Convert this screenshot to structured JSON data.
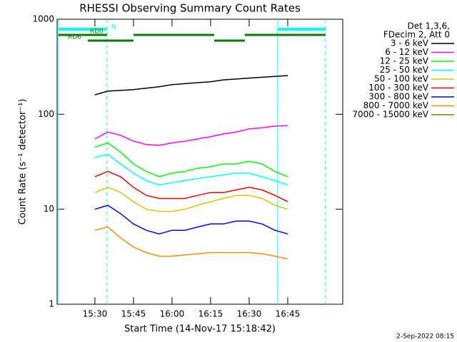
{
  "chart_data": {
    "type": "line",
    "title": "RHESSI Observing Summary Count Rates",
    "xlabel": "Start Time (14-Nov-17 15:18:42)",
    "ylabel": "Count Rate (s⁻¹ detector⁻¹)",
    "legend_header": [
      "Det 1,3,6,",
      "FDecim 2, Att 0"
    ],
    "footer": "2-Sep-2022 08:15",
    "log_y": true,
    "xlim": [
      915.3,
      1026.4
    ],
    "xticks": [
      {
        "value": 930,
        "label": "15:30"
      },
      {
        "value": 945,
        "label": "15:45"
      },
      {
        "value": 960,
        "label": "16:00"
      },
      {
        "value": 975,
        "label": "16:15"
      },
      {
        "value": 990,
        "label": "16:30"
      },
      {
        "value": 1005,
        "label": "16:45"
      }
    ],
    "ylim": [
      1,
      1000
    ],
    "yticks": [
      1,
      10,
      100,
      1000
    ],
    "x": [
      930,
      935,
      940,
      945,
      950,
      955,
      960,
      965,
      970,
      975,
      980,
      985,
      990,
      995,
      1000,
      1005
    ],
    "series": [
      {
        "name": "3 - 6 keV",
        "color": "#000000",
        "values": [
          160,
          175,
          178,
          182,
          188,
          195,
          205,
          210,
          215,
          220,
          230,
          235,
          240,
          245,
          250,
          255
        ]
      },
      {
        "name": "6 - 12 keV",
        "color": "#ff00ff",
        "values": [
          55,
          65,
          60,
          52,
          48,
          47,
          50,
          52,
          55,
          58,
          62,
          65,
          70,
          72,
          75,
          76
        ]
      },
      {
        "name": "12 - 25 keV",
        "color": "#00ff00",
        "values": [
          45,
          50,
          40,
          30,
          25,
          22,
          24,
          25,
          27,
          28,
          30,
          30,
          32,
          30,
          25,
          22
        ]
      },
      {
        "name": "25 - 50 keV",
        "color": "#00ffff",
        "values": [
          35,
          38,
          30,
          24,
          20,
          18,
          19,
          20,
          21,
          22,
          23,
          24,
          24,
          22,
          20,
          18
        ]
      },
      {
        "name": "50 - 100 keV",
        "color": "#cccc00",
        "values": [
          15,
          17,
          15,
          12,
          10,
          9.5,
          9.5,
          10,
          11,
          12,
          13,
          14,
          14,
          13,
          11,
          10
        ]
      },
      {
        "name": "100 - 300 keV",
        "color": "#ff0000",
        "values": [
          22,
          25,
          22,
          17,
          14,
          13,
          13,
          13,
          14,
          15,
          15,
          16,
          17,
          16,
          14,
          12
        ]
      },
      {
        "name": "300 - 800 keV",
        "color": "#0000ff",
        "values": [
          10,
          11,
          9,
          7,
          6,
          5.5,
          6,
          6,
          6.5,
          7,
          7,
          7.5,
          7.5,
          7,
          6,
          5.5
        ]
      },
      {
        "name": "800 - 7000 keV",
        "color": "#ff8c00",
        "values": [
          6,
          6.5,
          5,
          4,
          3.5,
          3.2,
          3.2,
          3.3,
          3.4,
          3.5,
          3.5,
          3.5,
          3.5,
          3.4,
          3.2,
          3
        ]
      },
      {
        "name": "7000 - 15000 keV",
        "color": "#808000",
        "values": [
          null,
          null,
          null,
          null,
          null,
          null,
          null,
          null,
          null,
          null,
          null,
          null,
          null,
          null,
          null,
          null
        ]
      }
    ],
    "markers": {
      "color": "#00ffff",
      "solid": [
        915.8,
        1001.1
      ],
      "dashed": [
        934.7,
        1019.7
      ]
    },
    "flag_bars": [
      {
        "label": "N",
        "color": "#00ffff",
        "row": 0,
        "segments": [
          [
            915.8,
            934.7
          ],
          [
            1001.1,
            1019.7
          ]
        ]
      },
      {
        "label": "RD0",
        "color": "#008000",
        "row": 1,
        "segments": [
          [
            915.8,
            934.7
          ],
          [
            945,
            976.4
          ],
          [
            988.3,
            1019.7
          ]
        ]
      },
      {
        "label": "RD6",
        "color": "#008000",
        "row": 2,
        "segments": [
          [
            927.2,
            945
          ],
          [
            976.4,
            988.3
          ]
        ]
      }
    ]
  }
}
